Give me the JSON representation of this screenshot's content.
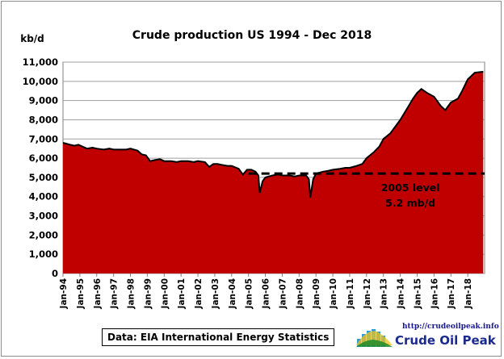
{
  "chart_data": {
    "type": "area",
    "title": "Crude  production US  1994 - Dec 2018",
    "ylabel": "kb/d",
    "xlabel": "",
    "ylim": [
      0,
      11000
    ],
    "yticks": [
      "0",
      "1,000",
      "2,000",
      "3,000",
      "4,000",
      "5,000",
      "6,000",
      "7,000",
      "8,000",
      "9,000",
      "10,000",
      "11,000"
    ],
    "xticks": [
      "Jan-94",
      "Jan-95",
      "Jan-96",
      "Jan-97",
      "Jan-98",
      "Jan-99",
      "Jan-00",
      "Jan-01",
      "Jan-02",
      "Jan-03",
      "Jan-04",
      "Jan-05",
      "Jan-06",
      "Jan-07",
      "Jan-08",
      "Jan-09",
      "Jan-10",
      "Jan-11",
      "Jan-12",
      "Jan-13",
      "Jan-14",
      "Jan-15",
      "Jan-16",
      "Jan-17",
      "Jan-18"
    ],
    "x_range": [
      "1994-01",
      "2018-12"
    ],
    "grid": true,
    "fill_color": "#c00000",
    "line_color": "#000000",
    "series": [
      {
        "values_note_free": true,
        "points": [
          [
            "1994-01",
            6800
          ],
          [
            "1994-06",
            6700
          ],
          [
            "1994-09",
            6650
          ],
          [
            "1994-12",
            6700
          ],
          [
            "1995-03",
            6600
          ],
          [
            "1995-06",
            6500
          ],
          [
            "1995-10",
            6550
          ],
          [
            "1996-01",
            6500
          ],
          [
            "1996-06",
            6450
          ],
          [
            "1996-10",
            6500
          ],
          [
            "1997-01",
            6450
          ],
          [
            "1997-06",
            6450
          ],
          [
            "1997-10",
            6450
          ],
          [
            "1998-01",
            6500
          ],
          [
            "1998-06",
            6400
          ],
          [
            "1998-09",
            6200
          ],
          [
            "1998-12",
            6150
          ],
          [
            "1999-03",
            5850
          ],
          [
            "1999-06",
            5900
          ],
          [
            "1999-10",
            5950
          ],
          [
            "2000-01",
            5850
          ],
          [
            "2000-06",
            5850
          ],
          [
            "2000-10",
            5800
          ],
          [
            "2001-01",
            5850
          ],
          [
            "2001-06",
            5850
          ],
          [
            "2001-10",
            5800
          ],
          [
            "2002-01",
            5850
          ],
          [
            "2002-06",
            5800
          ],
          [
            "2002-09",
            5550
          ],
          [
            "2002-12",
            5700
          ],
          [
            "2003-03",
            5700
          ],
          [
            "2003-06",
            5650
          ],
          [
            "2003-10",
            5600
          ],
          [
            "2004-01",
            5600
          ],
          [
            "2004-06",
            5450
          ],
          [
            "2004-09",
            5150
          ],
          [
            "2004-12",
            5400
          ],
          [
            "2005-03",
            5400
          ],
          [
            "2005-06",
            5300
          ],
          [
            "2005-08",
            5100
          ],
          [
            "2005-09",
            4200
          ],
          [
            "2005-11",
            4800
          ],
          [
            "2006-01",
            5000
          ],
          [
            "2006-06",
            5100
          ],
          [
            "2006-10",
            5150
          ],
          [
            "2007-01",
            5100
          ],
          [
            "2007-06",
            5100
          ],
          [
            "2007-10",
            5050
          ],
          [
            "2008-01",
            5100
          ],
          [
            "2008-06",
            5100
          ],
          [
            "2008-08",
            4900
          ],
          [
            "2008-09",
            3950
          ],
          [
            "2008-11",
            4900
          ],
          [
            "2009-01",
            5200
          ],
          [
            "2009-06",
            5300
          ],
          [
            "2009-10",
            5350
          ],
          [
            "2010-01",
            5400
          ],
          [
            "2010-06",
            5450
          ],
          [
            "2010-10",
            5500
          ],
          [
            "2011-01",
            5500
          ],
          [
            "2011-06",
            5600
          ],
          [
            "2011-10",
            5700
          ],
          [
            "2012-01",
            6000
          ],
          [
            "2012-06",
            6300
          ],
          [
            "2012-10",
            6600
          ],
          [
            "2013-01",
            7000
          ],
          [
            "2013-06",
            7300
          ],
          [
            "2013-10",
            7700
          ],
          [
            "2014-01",
            8000
          ],
          [
            "2014-06",
            8600
          ],
          [
            "2014-10",
            9100
          ],
          [
            "2015-01",
            9400
          ],
          [
            "2015-04",
            9600
          ],
          [
            "2015-08",
            9400
          ],
          [
            "2016-01",
            9200
          ],
          [
            "2016-06",
            8700
          ],
          [
            "2016-09",
            8500
          ],
          [
            "2017-01",
            8900
          ],
          [
            "2017-06",
            9100
          ],
          [
            "2017-09",
            9500
          ],
          [
            "2018-01",
            10100
          ],
          [
            "2018-06",
            10450
          ],
          [
            "2018-12",
            10500
          ]
        ]
      }
    ],
    "reference_line": {
      "value": 5200,
      "label_line1": "2005 level",
      "label_line2": "5.2 mb/d"
    }
  },
  "source_label": "Data: EIA International Energy Statistics",
  "logo": {
    "url_text": "http://crudeoilpeak.info",
    "name_text": "Crude Oil Peak"
  }
}
